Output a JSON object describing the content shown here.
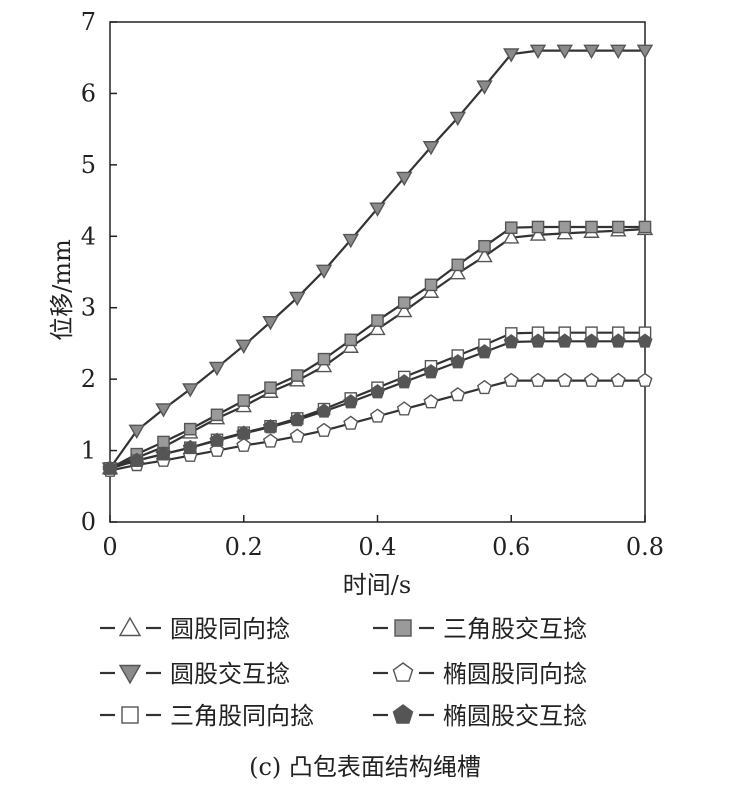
{
  "chart_data": {
    "type": "line",
    "title": "",
    "caption": "(c) 凸包表面结构绳槽",
    "xlabel": "时间/s",
    "ylabel": "位移/mm",
    "xlim": [
      0,
      0.8
    ],
    "ylim": [
      0,
      7
    ],
    "xticks": [
      0,
      0.2,
      0.4,
      0.6,
      0.8
    ],
    "xtick_labels": [
      "0",
      "0.2",
      "0.4",
      "0.6",
      "0.8"
    ],
    "yticks": [
      0,
      1,
      2,
      3,
      4,
      5,
      6,
      7
    ],
    "ytick_labels": [
      "0",
      "1",
      "2",
      "3",
      "4",
      "5",
      "6",
      "7"
    ],
    "grid": false,
    "legend_position": "bottom",
    "x": [
      0,
      0.04,
      0.08,
      0.12,
      0.16,
      0.2,
      0.24,
      0.28,
      0.32,
      0.36,
      0.4,
      0.44,
      0.48,
      0.52,
      0.56,
      0.6,
      0.64,
      0.68,
      0.72,
      0.76,
      0.8
    ],
    "series": [
      {
        "name": "圆股同向捻",
        "marker": "triangle-up",
        "fill": "#ffffff",
        "values": [
          0.75,
          0.9,
          1.05,
          1.25,
          1.45,
          1.62,
          1.82,
          1.98,
          2.18,
          2.45,
          2.7,
          2.95,
          3.22,
          3.48,
          3.72,
          3.98,
          4.02,
          4.04,
          4.06,
          4.08,
          4.1
        ]
      },
      {
        "name": "三角股交互捻",
        "marker": "square",
        "fill": "#9a9a9a",
        "values": [
          0.75,
          0.95,
          1.12,
          1.3,
          1.5,
          1.7,
          1.88,
          2.05,
          2.28,
          2.55,
          2.82,
          3.07,
          3.32,
          3.6,
          3.86,
          4.12,
          4.13,
          4.13,
          4.13,
          4.13,
          4.13
        ]
      },
      {
        "name": "圆股交互捻",
        "marker": "triangle-down",
        "fill": "#8a8a8a",
        "values": [
          0.75,
          1.28,
          1.58,
          1.86,
          2.16,
          2.47,
          2.8,
          3.14,
          3.52,
          3.95,
          4.39,
          4.82,
          5.25,
          5.66,
          6.1,
          6.55,
          6.6,
          6.6,
          6.6,
          6.6,
          6.6
        ]
      },
      {
        "name": "椭圆股同向捻",
        "marker": "pentagon",
        "fill": "#ffffff",
        "values": [
          0.72,
          0.8,
          0.86,
          0.93,
          1.0,
          1.07,
          1.13,
          1.2,
          1.28,
          1.38,
          1.48,
          1.58,
          1.68,
          1.78,
          1.88,
          1.98,
          1.98,
          1.98,
          1.98,
          1.98,
          1.98
        ]
      },
      {
        "name": "三角股同向捻",
        "marker": "square",
        "fill": "#ffffff",
        "values": [
          0.75,
          0.86,
          0.95,
          1.04,
          1.15,
          1.25,
          1.34,
          1.45,
          1.58,
          1.73,
          1.88,
          2.03,
          2.18,
          2.33,
          2.48,
          2.64,
          2.65,
          2.65,
          2.65,
          2.65,
          2.65
        ]
      },
      {
        "name": "椭圆股交互捻",
        "marker": "pentagon",
        "fill": "#555555",
        "values": [
          0.75,
          0.86,
          0.95,
          1.04,
          1.14,
          1.24,
          1.33,
          1.43,
          1.55,
          1.68,
          1.82,
          1.96,
          2.1,
          2.24,
          2.38,
          2.52,
          2.53,
          2.53,
          2.53,
          2.53,
          2.53
        ]
      }
    ],
    "line_color": "#333333",
    "marker_stroke": "#555555"
  }
}
